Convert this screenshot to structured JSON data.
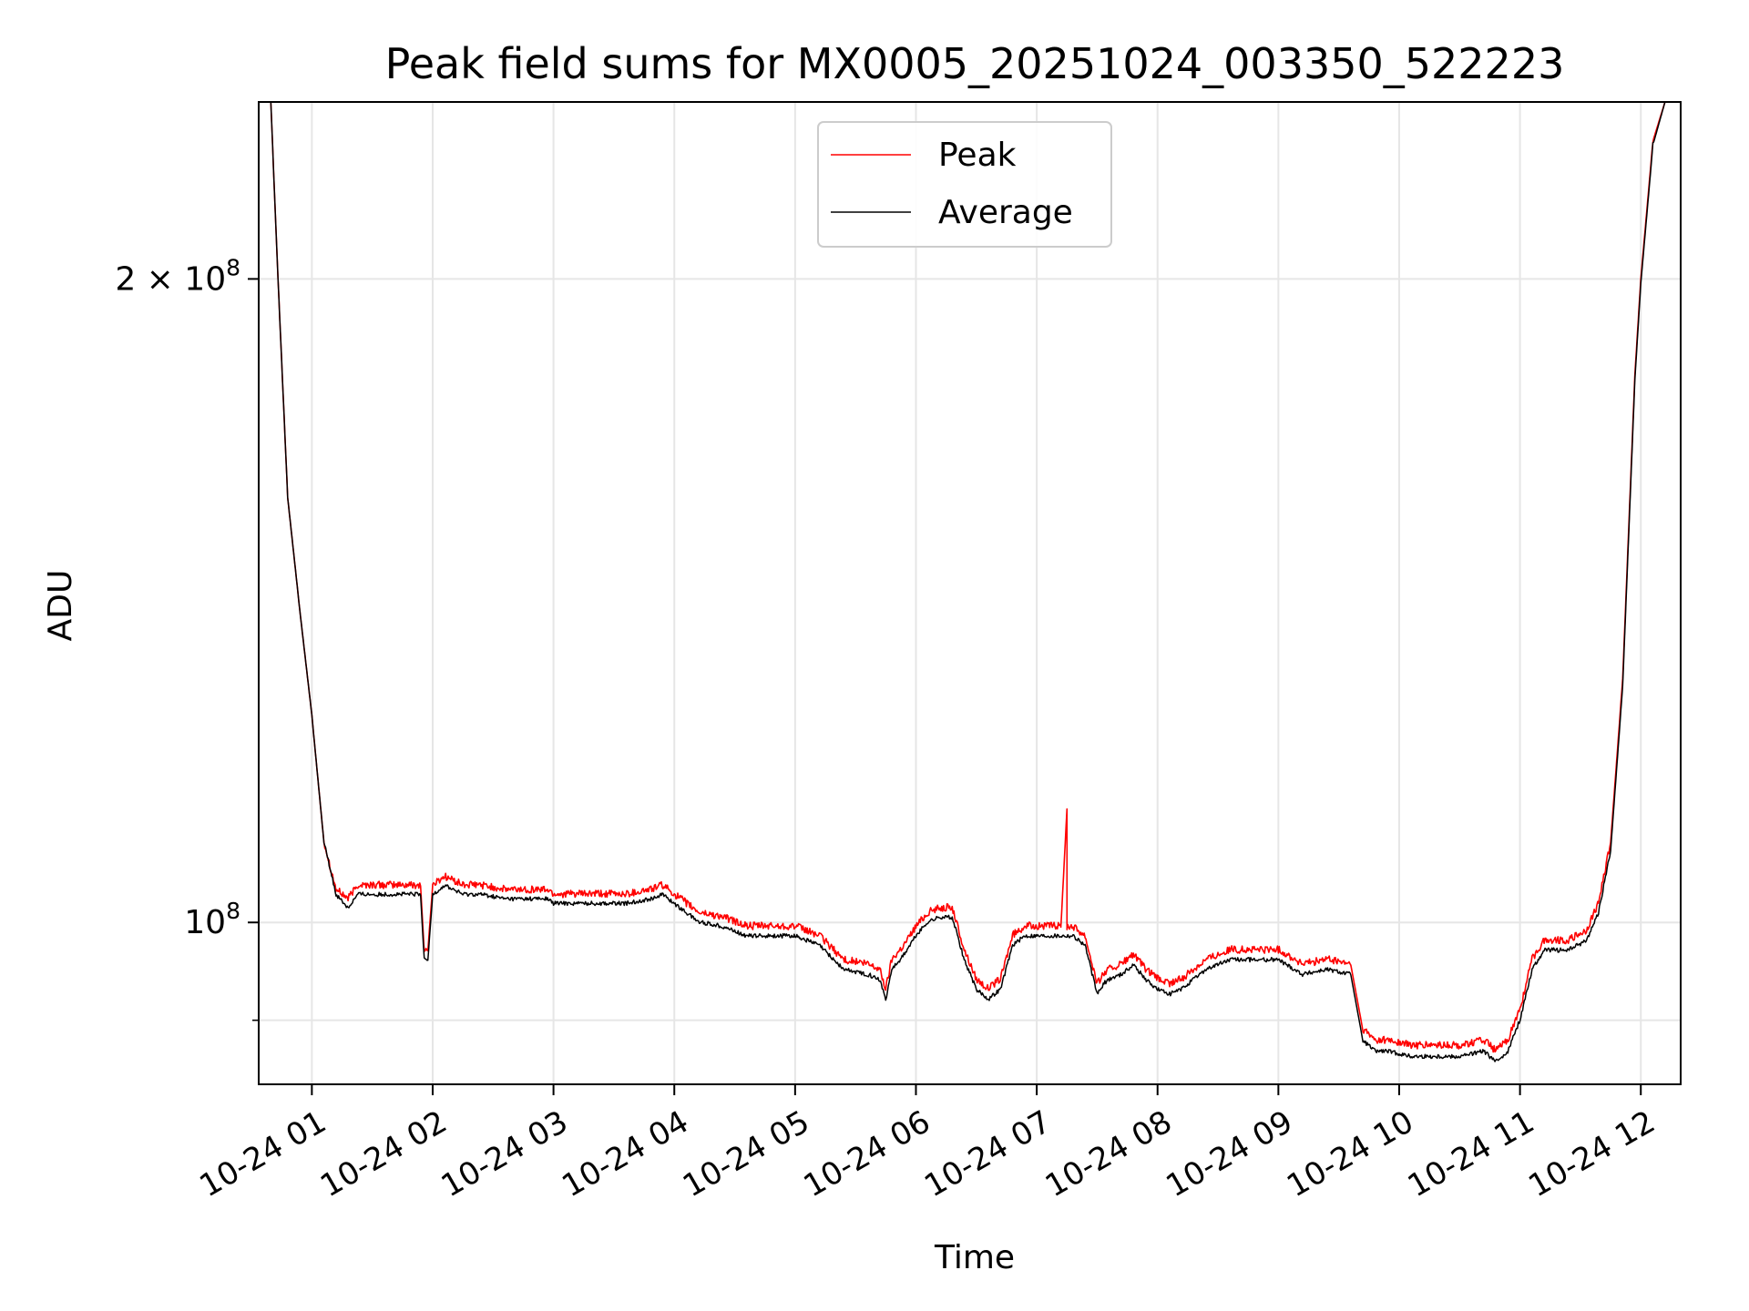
{
  "chart_data": {
    "type": "line",
    "title": "Peak field sums for MX0005_20251024_003350_522223",
    "xlabel": "Time",
    "ylabel": "ADU",
    "yscale": "log",
    "xlim_hours": [
      0.56,
      12.33
    ],
    "ylim": [
      84000000.0,
      242000000.0
    ],
    "grid": true,
    "legend_position": "upper center",
    "colors": {
      "peak": "#ff0000",
      "average": "#000000",
      "grid": "#e6e6e6"
    },
    "x_ticks": [
      {
        "hour": 1,
        "label": "10-24 01"
      },
      {
        "hour": 2,
        "label": "10-24 02"
      },
      {
        "hour": 3,
        "label": "10-24 03"
      },
      {
        "hour": 4,
        "label": "10-24 04"
      },
      {
        "hour": 5,
        "label": "10-24 05"
      },
      {
        "hour": 6,
        "label": "10-24 06"
      },
      {
        "hour": 7,
        "label": "10-24 07"
      },
      {
        "hour": 8,
        "label": "10-24 08"
      },
      {
        "hour": 9,
        "label": "10-24 09"
      },
      {
        "hour": 10,
        "label": "10-24 10"
      },
      {
        "hour": 11,
        "label": "10-24 11"
      },
      {
        "hour": 12,
        "label": "10-24 12"
      }
    ],
    "y_major_ticks": [
      {
        "value": 100000000,
        "base": "10",
        "exp": "8",
        "prefix": ""
      },
      {
        "value": 200000000,
        "base": "10",
        "exp": "8",
        "prefix": "2 × "
      }
    ],
    "y_minor_ticks": [
      90000000
    ],
    "series": [
      {
        "name": "Peak",
        "color": "#ff0000",
        "x_hours": [
          0.56,
          0.62,
          0.66,
          0.72,
          0.8,
          0.9,
          1.0,
          1.1,
          1.2,
          1.3,
          1.38,
          1.45,
          1.55,
          1.65,
          1.8,
          1.9,
          1.93,
          1.96,
          2.0,
          2.1,
          2.25,
          2.4,
          2.6,
          2.8,
          2.95,
          3.0,
          3.2,
          3.4,
          3.6,
          3.8,
          3.9,
          4.0,
          4.2,
          4.4,
          4.6,
          4.8,
          5.0,
          5.2,
          5.4,
          5.6,
          5.7,
          5.75,
          5.8,
          5.9,
          6.0,
          6.1,
          6.2,
          6.3,
          6.4,
          6.5,
          6.6,
          6.7,
          6.8,
          6.9,
          6.95,
          7.0,
          7.1,
          7.2,
          7.25,
          7.25,
          7.25,
          7.3,
          7.4,
          7.5,
          7.55,
          7.6,
          7.7,
          7.8,
          7.9,
          8.0,
          8.1,
          8.2,
          8.3,
          8.4,
          8.6,
          8.8,
          9.0,
          9.2,
          9.4,
          9.6,
          9.7,
          9.8,
          9.84,
          9.86,
          9.9,
          10.1,
          10.3,
          10.5,
          10.7,
          10.8,
          10.9,
          11.0,
          11.1,
          11.2,
          11.4,
          11.55,
          11.65,
          11.75,
          11.85,
          11.95,
          12.0,
          12.1,
          12.2,
          12.33
        ],
        "values": [
          242000000,
          242000000,
          242000000,
          200000000,
          158000000,
          140000000,
          125000000,
          109000000,
          103500000,
          102500000,
          104000000,
          104000000,
          104000000,
          104000000,
          104000000,
          104000000,
          97000000,
          97000000,
          104000000,
          105000000,
          104000000,
          104000000,
          103500000,
          103500000,
          103500000,
          103000000,
          103000000,
          103000000,
          103000000,
          103500000,
          104000000,
          103000000,
          101000000,
          100500000,
          99500000,
          99500000,
          99500000,
          98500000,
          96000000,
          95500000,
          95000000,
          93000000,
          96000000,
          97500000,
          99500000,
          101000000,
          101500000,
          101500000,
          97000000,
          94000000,
          93000000,
          94000000,
          98500000,
          99500000,
          99500000,
          99500000,
          99500000,
          99500000,
          113000000,
          99500000,
          99500000,
          99500000,
          98500000,
          93500000,
          94500000,
          95000000,
          95500000,
          96500000,
          95000000,
          94000000,
          93500000,
          94000000,
          95000000,
          96000000,
          97000000,
          97000000,
          97000000,
          95500000,
          96000000,
          95500000,
          89000000,
          88000000,
          88000000,
          88000000,
          88000000,
          87500000,
          87500000,
          87500000,
          88000000,
          87000000,
          88000000,
          91000000,
          96000000,
          98000000,
          98000000,
          99000000,
          102000000,
          109000000,
          130000000,
          180000000,
          200000000,
          232000000,
          242000000,
          242000000
        ]
      },
      {
        "name": "Average",
        "color": "#000000",
        "x_hours": [
          0.56,
          0.62,
          0.66,
          0.72,
          0.8,
          0.9,
          1.0,
          1.1,
          1.2,
          1.3,
          1.38,
          1.45,
          1.55,
          1.65,
          1.8,
          1.9,
          1.93,
          1.96,
          2.0,
          2.1,
          2.25,
          2.4,
          2.6,
          2.8,
          2.95,
          3.0,
          3.2,
          3.4,
          3.6,
          3.8,
          3.9,
          4.0,
          4.2,
          4.4,
          4.6,
          4.8,
          5.0,
          5.2,
          5.4,
          5.6,
          5.7,
          5.75,
          5.8,
          5.9,
          6.0,
          6.1,
          6.2,
          6.3,
          6.4,
          6.5,
          6.6,
          6.7,
          6.8,
          6.9,
          6.95,
          7.0,
          7.1,
          7.2,
          7.25,
          7.3,
          7.4,
          7.5,
          7.55,
          7.6,
          7.7,
          7.8,
          7.9,
          8.0,
          8.1,
          8.2,
          8.3,
          8.4,
          8.6,
          8.8,
          9.0,
          9.2,
          9.4,
          9.6,
          9.7,
          9.8,
          9.84,
          9.86,
          9.9,
          10.1,
          10.3,
          10.5,
          10.7,
          10.8,
          10.9,
          11.0,
          11.1,
          11.2,
          11.4,
          11.55,
          11.65,
          11.75,
          11.85,
          11.95,
          12.0,
          12.1,
          12.2,
          12.33
        ],
        "values": [
          242000000,
          242000000,
          242000000,
          200000000,
          158000000,
          140000000,
          125000000,
          109000000,
          103000000,
          101500000,
          103000000,
          103000000,
          103000000,
          103000000,
          103000000,
          103000000,
          96000000,
          96000000,
          103000000,
          104000000,
          103000000,
          103000000,
          102500000,
          102500000,
          102500000,
          102000000,
          102000000,
          102000000,
          102000000,
          102500000,
          103000000,
          102000000,
          100000000,
          99500000,
          98500000,
          98500000,
          98500000,
          97500000,
          95000000,
          94500000,
          94000000,
          92000000,
          95000000,
          96500000,
          98500000,
          100000000,
          100500000,
          100500000,
          96000000,
          93000000,
          92000000,
          93000000,
          97500000,
          98500000,
          98500000,
          98500000,
          98500000,
          98500000,
          98500000,
          98500000,
          97500000,
          92500000,
          93500000,
          94000000,
          94500000,
          95500000,
          94000000,
          93000000,
          92500000,
          93000000,
          94000000,
          95000000,
          96000000,
          96000000,
          96000000,
          94500000,
          95000000,
          94500000,
          88000000,
          87000000,
          87000000,
          87000000,
          87000000,
          86500000,
          86500000,
          86500000,
          87000000,
          86000000,
          87000000,
          90000000,
          95000000,
          97000000,
          97000000,
          98000000,
          101000000,
          108000000,
          129000000,
          179000000,
          199000000,
          231000000,
          242000000,
          242000000
        ]
      }
    ]
  }
}
